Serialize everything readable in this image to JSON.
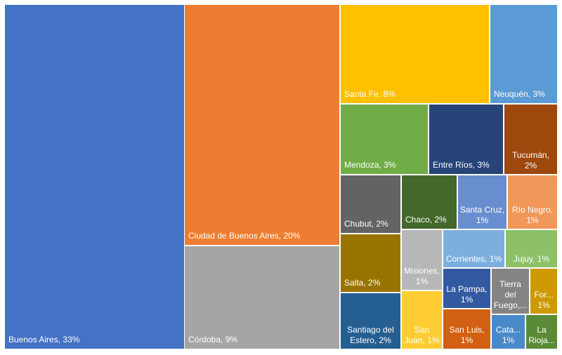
{
  "chart_data": {
    "type": "treemap",
    "categories": [
      "Buenos Aires,",
      "Ciudad de Buenos Aires,",
      "Córdoba,",
      "Santa Fe,",
      "Neuquén,",
      "Mendoza,",
      "Entre Ríos,",
      "Tucumán,",
      "Chubut,",
      "Chaco,",
      "Santa Cruz,",
      "Río Negro,",
      "Salta,",
      "Santiago del Estero,",
      "Misiones,",
      "San Juan,",
      "Corrientes,",
      "Jujuy,",
      "La Pampa,",
      "San Luis,",
      "Tierra del Fuego,...",
      "For...",
      "Cata...",
      "La Rioja..."
    ],
    "values": [
      33,
      20,
      9,
      8,
      3,
      3,
      3,
      2,
      2,
      2,
      1,
      1,
      2,
      2,
      1,
      1,
      1,
      1,
      1,
      1,
      1,
      1,
      1,
      1
    ],
    "value_labels": [
      "33%",
      "20%",
      "9%",
      "8%",
      "3%",
      "3%",
      "3%",
      "2%",
      "2%",
      "2%",
      "1%",
      "1%",
      "2%",
      "2%",
      "1%",
      "1%",
      "1%",
      "1%",
      "1%",
      "1%",
      "",
      "1%",
      "1%",
      ""
    ],
    "colors": [
      "#4472c4",
      "#ed7d31",
      "#a5a5a5",
      "#ffc000",
      "#5b9bd5",
      "#70ad47",
      "#264478",
      "#9e480e",
      "#636363",
      "#43682b",
      "#698ed0",
      "#f1975a",
      "#997300",
      "#255e91",
      "#b7b7b7",
      "#ffcd33",
      "#7cafdd",
      "#8cc168",
      "#335aa1",
      "#d26012",
      "#848484",
      "#cc9a00",
      "#4a8ac8",
      "#5a8a38"
    ]
  }
}
